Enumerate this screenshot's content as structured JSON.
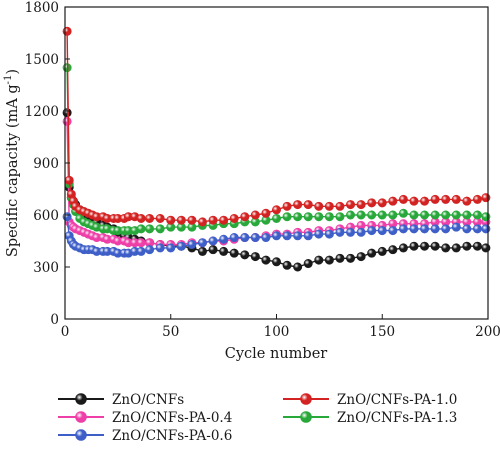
{
  "chart_data": {
    "type": "scatter",
    "title": "",
    "xlabel": "Cycle number",
    "ylabel": "Specific capacity (mA g",
    "ylabel_superscript": "-1",
    "ylabel_close": ")",
    "xlim": [
      0,
      200
    ],
    "ylim": [
      0,
      1800
    ],
    "xticks": [
      0,
      50,
      100,
      150,
      200
    ],
    "xtick_labels": [
      "0",
      "50",
      "100",
      "150",
      "200"
    ],
    "yticks": [
      0,
      300,
      600,
      900,
      1200,
      1500,
      1800
    ],
    "ytick_labels": [
      "0",
      "300",
      "600",
      "900",
      "1200",
      "1500",
      "1800"
    ],
    "grid": false,
    "legend_position": "below plot, two columns",
    "marker": "sphere",
    "series": [
      {
        "name": "ZnO/CNFs",
        "color": "#1a1a1a",
        "points": [
          [
            1,
            1190
          ],
          [
            2,
            760
          ],
          [
            3,
            700
          ],
          [
            4,
            680
          ],
          [
            5,
            660
          ],
          [
            7,
            630
          ],
          [
            9,
            610
          ],
          [
            11,
            600
          ],
          [
            13,
            590
          ],
          [
            15,
            560
          ],
          [
            18,
            540
          ],
          [
            20,
            530
          ],
          [
            23,
            520
          ],
          [
            25,
            500
          ],
          [
            28,
            480
          ],
          [
            30,
            470
          ],
          [
            33,
            460
          ],
          [
            36,
            450
          ],
          [
            40,
            440
          ],
          [
            45,
            430
          ],
          [
            50,
            420
          ],
          [
            55,
            420
          ],
          [
            60,
            410
          ],
          [
            65,
            390
          ],
          [
            70,
            400
          ],
          [
            75,
            390
          ],
          [
            80,
            380
          ],
          [
            85,
            370
          ],
          [
            90,
            360
          ],
          [
            95,
            340
          ],
          [
            100,
            330
          ],
          [
            105,
            310
          ],
          [
            110,
            300
          ],
          [
            115,
            320
          ],
          [
            120,
            340
          ],
          [
            125,
            340
          ],
          [
            130,
            350
          ],
          [
            135,
            350
          ],
          [
            140,
            360
          ],
          [
            145,
            380
          ],
          [
            150,
            390
          ],
          [
            155,
            400
          ],
          [
            160,
            410
          ],
          [
            165,
            420
          ],
          [
            170,
            420
          ],
          [
            175,
            420
          ],
          [
            180,
            410
          ],
          [
            185,
            410
          ],
          [
            190,
            420
          ],
          [
            195,
            420
          ],
          [
            199,
            410
          ]
        ]
      },
      {
        "name": "ZnO/CNFs-PA-1.0",
        "color": "#d32222",
        "points": [
          [
            1,
            1660
          ],
          [
            2,
            800
          ],
          [
            3,
            720
          ],
          [
            4,
            680
          ],
          [
            5,
            650
          ],
          [
            7,
            630
          ],
          [
            9,
            620
          ],
          [
            11,
            610
          ],
          [
            13,
            600
          ],
          [
            15,
            590
          ],
          [
            18,
            590
          ],
          [
            20,
            580
          ],
          [
            23,
            580
          ],
          [
            25,
            580
          ],
          [
            28,
            580
          ],
          [
            30,
            590
          ],
          [
            33,
            590
          ],
          [
            36,
            580
          ],
          [
            40,
            580
          ],
          [
            45,
            580
          ],
          [
            50,
            570
          ],
          [
            55,
            570
          ],
          [
            60,
            570
          ],
          [
            65,
            560
          ],
          [
            70,
            570
          ],
          [
            75,
            570
          ],
          [
            80,
            580
          ],
          [
            85,
            590
          ],
          [
            90,
            600
          ],
          [
            95,
            610
          ],
          [
            100,
            630
          ],
          [
            105,
            650
          ],
          [
            110,
            660
          ],
          [
            115,
            660
          ],
          [
            120,
            650
          ],
          [
            125,
            650
          ],
          [
            130,
            650
          ],
          [
            135,
            660
          ],
          [
            140,
            660
          ],
          [
            145,
            670
          ],
          [
            150,
            670
          ],
          [
            155,
            680
          ],
          [
            160,
            690
          ],
          [
            165,
            680
          ],
          [
            170,
            680
          ],
          [
            175,
            690
          ],
          [
            180,
            690
          ],
          [
            185,
            690
          ],
          [
            190,
            680
          ],
          [
            195,
            690
          ],
          [
            199,
            700
          ]
        ]
      },
      {
        "name": "ZnO/CNFs-PA-0.4",
        "color": "#ee3fa8",
        "points": [
          [
            1,
            1140
          ],
          [
            2,
            560
          ],
          [
            3,
            540
          ],
          [
            4,
            530
          ],
          [
            5,
            520
          ],
          [
            7,
            510
          ],
          [
            9,
            500
          ],
          [
            11,
            490
          ],
          [
            13,
            480
          ],
          [
            15,
            470
          ],
          [
            18,
            470
          ],
          [
            20,
            460
          ],
          [
            23,
            460
          ],
          [
            25,
            450
          ],
          [
            28,
            450
          ],
          [
            30,
            440
          ],
          [
            33,
            440
          ],
          [
            36,
            440
          ],
          [
            40,
            440
          ],
          [
            45,
            430
          ],
          [
            50,
            430
          ],
          [
            55,
            430
          ],
          [
            60,
            440
          ],
          [
            65,
            440
          ],
          [
            70,
            450
          ],
          [
            75,
            450
          ],
          [
            80,
            460
          ],
          [
            85,
            470
          ],
          [
            90,
            470
          ],
          [
            95,
            480
          ],
          [
            100,
            490
          ],
          [
            105,
            490
          ],
          [
            110,
            500
          ],
          [
            115,
            500
          ],
          [
            120,
            510
          ],
          [
            125,
            510
          ],
          [
            130,
            520
          ],
          [
            135,
            530
          ],
          [
            140,
            540
          ],
          [
            145,
            540
          ],
          [
            150,
            540
          ],
          [
            155,
            550
          ],
          [
            160,
            550
          ],
          [
            165,
            550
          ],
          [
            170,
            550
          ],
          [
            175,
            560
          ],
          [
            180,
            560
          ],
          [
            185,
            560
          ],
          [
            190,
            560
          ],
          [
            195,
            560
          ],
          [
            199,
            560
          ]
        ]
      },
      {
        "name": "ZnO/CNFs-PA-1.3",
        "color": "#28a83a",
        "points": [
          [
            1,
            1450
          ],
          [
            2,
            780
          ],
          [
            3,
            700
          ],
          [
            4,
            660
          ],
          [
            5,
            620
          ],
          [
            7,
            580
          ],
          [
            9,
            560
          ],
          [
            11,
            550
          ],
          [
            13,
            540
          ],
          [
            15,
            530
          ],
          [
            18,
            520
          ],
          [
            20,
            520
          ],
          [
            23,
            510
          ],
          [
            25,
            510
          ],
          [
            28,
            510
          ],
          [
            30,
            510
          ],
          [
            33,
            510
          ],
          [
            36,
            520
          ],
          [
            40,
            520
          ],
          [
            45,
            520
          ],
          [
            50,
            530
          ],
          [
            55,
            530
          ],
          [
            60,
            530
          ],
          [
            65,
            540
          ],
          [
            70,
            540
          ],
          [
            75,
            550
          ],
          [
            80,
            550
          ],
          [
            85,
            560
          ],
          [
            90,
            560
          ],
          [
            95,
            570
          ],
          [
            100,
            580
          ],
          [
            105,
            590
          ],
          [
            110,
            590
          ],
          [
            115,
            590
          ],
          [
            120,
            590
          ],
          [
            125,
            590
          ],
          [
            130,
            590
          ],
          [
            135,
            600
          ],
          [
            140,
            600
          ],
          [
            145,
            600
          ],
          [
            150,
            600
          ],
          [
            155,
            600
          ],
          [
            160,
            610
          ],
          [
            165,
            600
          ],
          [
            170,
            600
          ],
          [
            175,
            600
          ],
          [
            180,
            600
          ],
          [
            185,
            600
          ],
          [
            190,
            600
          ],
          [
            195,
            600
          ],
          [
            199,
            590
          ]
        ]
      },
      {
        "name": "ZnO/CNFs-PA-0.6",
        "color": "#3e5fc8",
        "points": [
          [
            1,
            590
          ],
          [
            2,
            480
          ],
          [
            3,
            450
          ],
          [
            4,
            430
          ],
          [
            5,
            420
          ],
          [
            7,
            410
          ],
          [
            9,
            400
          ],
          [
            11,
            400
          ],
          [
            13,
            400
          ],
          [
            15,
            390
          ],
          [
            18,
            390
          ],
          [
            20,
            390
          ],
          [
            23,
            390
          ],
          [
            25,
            380
          ],
          [
            28,
            380
          ],
          [
            30,
            380
          ],
          [
            33,
            390
          ],
          [
            36,
            390
          ],
          [
            40,
            400
          ],
          [
            45,
            410
          ],
          [
            50,
            410
          ],
          [
            55,
            420
          ],
          [
            60,
            430
          ],
          [
            65,
            440
          ],
          [
            70,
            450
          ],
          [
            75,
            460
          ],
          [
            80,
            470
          ],
          [
            85,
            470
          ],
          [
            90,
            470
          ],
          [
            95,
            470
          ],
          [
            100,
            480
          ],
          [
            105,
            480
          ],
          [
            110,
            480
          ],
          [
            115,
            480
          ],
          [
            120,
            490
          ],
          [
            125,
            490
          ],
          [
            130,
            500
          ],
          [
            135,
            500
          ],
          [
            140,
            500
          ],
          [
            145,
            510
          ],
          [
            150,
            510
          ],
          [
            155,
            510
          ],
          [
            160,
            520
          ],
          [
            165,
            520
          ],
          [
            170,
            520
          ],
          [
            175,
            520
          ],
          [
            180,
            520
          ],
          [
            185,
            530
          ],
          [
            190,
            520
          ],
          [
            195,
            520
          ],
          [
            199,
            520
          ]
        ]
      }
    ]
  }
}
